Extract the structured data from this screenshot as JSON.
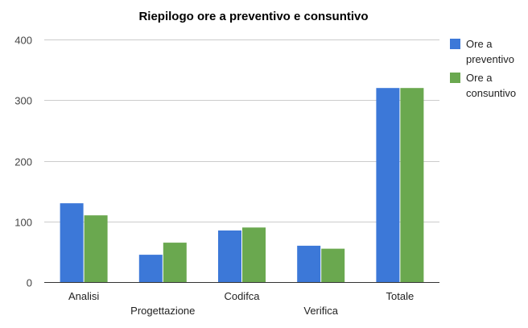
{
  "chart_data": {
    "type": "bar",
    "title": "Riepilogo ore a preventivo e consuntivo",
    "categories": [
      "Analisi",
      "Progettazione",
      "Codifca",
      "Verifica",
      "Totale"
    ],
    "series": [
      {
        "name": "Ore a preventivo",
        "legend_lines": [
          "Ore a",
          "preventivo"
        ],
        "values": [
          130,
          45,
          85,
          60,
          320
        ],
        "color": "#3c78d8"
      },
      {
        "name": "Ore a consuntivo",
        "legend_lines": [
          "Ore a",
          "consuntivo"
        ],
        "values": [
          110,
          65,
          90,
          55,
          320
        ],
        "color": "#6aa84f"
      }
    ],
    "yticks": [
      "0",
      "100",
      "200",
      "300",
      "400"
    ],
    "ylim": [
      0,
      400
    ],
    "xlabel": "",
    "ylabel": "",
    "grid": true,
    "legend_position": "right"
  }
}
